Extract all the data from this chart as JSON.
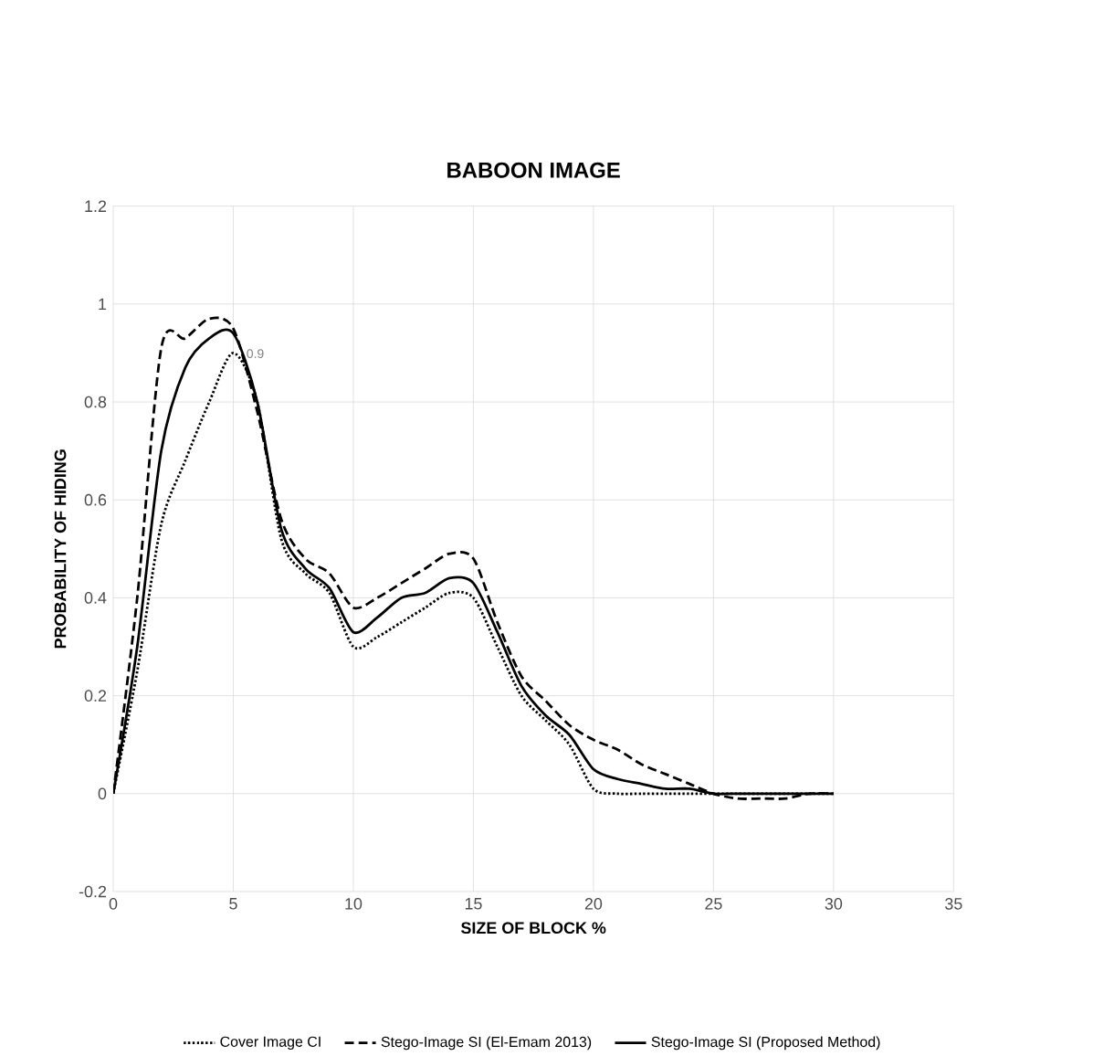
{
  "chart_data": {
    "type": "line",
    "title": "BABOON IMAGE",
    "xlabel": "SIZE OF BLOCK %",
    "ylabel": "PROBABILITY OF HIDING",
    "x": [
      0,
      1,
      2,
      3,
      4,
      5,
      6,
      7,
      8,
      9,
      10,
      11,
      12,
      13,
      14,
      15,
      16,
      17,
      18,
      19,
      20,
      21,
      22,
      23,
      24,
      25,
      26,
      27,
      28,
      29,
      30
    ],
    "series": [
      {
        "name": "Cover Image CI",
        "color": "#000000",
        "line_style": "dotted",
        "values": [
          0,
          0.25,
          0.55,
          0.68,
          0.8,
          0.9,
          0.8,
          0.52,
          0.45,
          0.41,
          0.3,
          0.32,
          0.35,
          0.38,
          0.41,
          0.4,
          0.3,
          0.2,
          0.15,
          0.1,
          0.01,
          0,
          0,
          0,
          0,
          0,
          0,
          0,
          0,
          0,
          0
        ]
      },
      {
        "name": "Stego-Image SI (El-Emam 2013)",
        "color": "#000000",
        "line_style": "dashed",
        "values": [
          0,
          0.4,
          0.91,
          0.93,
          0.97,
          0.95,
          0.78,
          0.56,
          0.48,
          0.45,
          0.38,
          0.4,
          0.43,
          0.46,
          0.49,
          0.48,
          0.35,
          0.24,
          0.19,
          0.14,
          0.11,
          0.09,
          0.06,
          0.04,
          0.02,
          0,
          -0.01,
          -0.01,
          -0.01,
          0,
          0
        ]
      },
      {
        "name": "Stego-Image SI (Proposed Method)",
        "color": "#000000",
        "line_style": "solid",
        "values": [
          0,
          0.3,
          0.7,
          0.87,
          0.93,
          0.94,
          0.8,
          0.54,
          0.46,
          0.42,
          0.33,
          0.36,
          0.4,
          0.41,
          0.44,
          0.43,
          0.33,
          0.22,
          0.16,
          0.12,
          0.05,
          0.03,
          0.02,
          0.01,
          0.01,
          0,
          0,
          0,
          0,
          0,
          0
        ]
      }
    ],
    "annotations": [
      {
        "text": "0.9",
        "x": 5,
        "y": 0.9
      }
    ],
    "xlim": [
      0,
      35
    ],
    "xticks": [
      0,
      5,
      10,
      15,
      20,
      25,
      30,
      35
    ],
    "ylim": [
      -0.2,
      1.2
    ],
    "yticks": [
      -0.2,
      0,
      0.2,
      0.4,
      0.6,
      0.8,
      1,
      1.2
    ],
    "grid": true,
    "legend": "bottom",
    "marker": "none"
  }
}
